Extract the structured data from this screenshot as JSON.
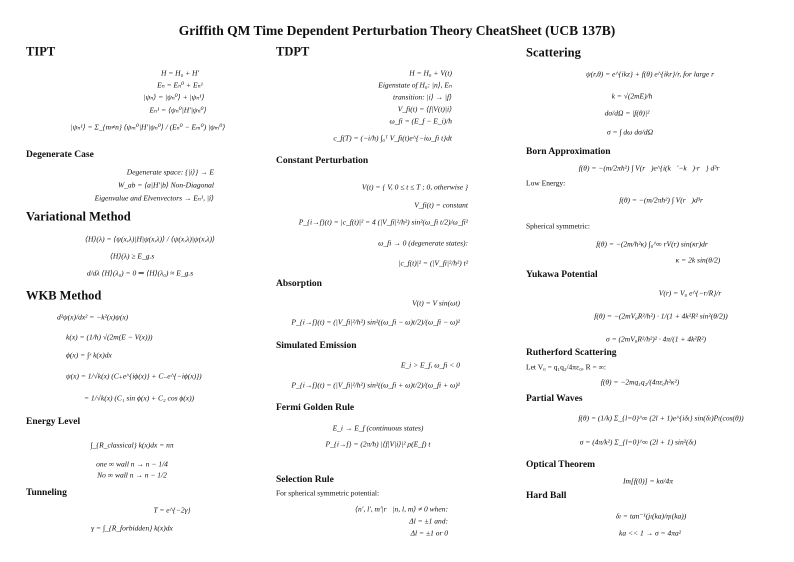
{
  "title": "Griffith QM Time Dependent Perturbation Theory CheatSheet (UCB 137B)",
  "col1": {
    "tipt": {
      "header": "TIPT",
      "eq": [
        "H = H₀ + H′",
        "Eₙ = Eₙ⁰ + Eₙ¹",
        "|ψₙ⟩ = |ψₙ⁰⟩ + |ψₙ¹⟩",
        "Eₙ¹ = ⟨ψₙ⁰|H′|ψₙ⁰⟩",
        "|ψₙ¹⟩ = Σ_{m≠n} ⟨ψₘ⁰|H′|ψₙ⁰⟩ / (Eₙ⁰ − Eₘ⁰) |ψₘ⁰⟩"
      ]
    },
    "degenerate": {
      "header": "Degenerate Case",
      "eq": [
        "Degenerate space: {|i⟩} → E",
        "W_ab = ⟨a|H′|b⟩ Non-Diagonal",
        "Eigenvalue and Elvenvectors → Eₙ¹, |î⟩"
      ]
    },
    "variational": {
      "header": "Variational Method",
      "eq": [
        "⟨H⟩(λ) = ⟨ψ(x,λ)|H|ψ(x,λ)⟩ / ⟨ψ(x,λ)|ψ(x,λ)⟩",
        "⟨H⟩(λ) ≥ E_g.s",
        "d/dλ ⟨H⟩(λ₀) = 0 ⇒ ⟨H⟩(λ₀) ≈ E_g.s"
      ]
    },
    "wkb": {
      "header": "WKB Method",
      "eq": [
        "d²ψ(x)/dx² = −k²(x)ψ(x)",
        "k(x) = (1/ħ) √(2m(E − V(x)))",
        "ϕ(x) = ∫ˣ k(x)dx",
        "ψ(x) = 1/√k(x) (C₊e^{iϕ(x)} + C₋e^{−iϕ(x)})",
        "= 1/√k(x) (C₁ sin ϕ(x) + C₂ cos ϕ(x))"
      ]
    },
    "energy": {
      "header": "Energy Level",
      "eq": [
        "∫_{R_classical} k(x)dx = nπ",
        "one ∞ wall   n → n − 1/4",
        "No ∞ wall   n → n − 1/2"
      ]
    },
    "tunneling": {
      "header": "Tunneling",
      "eq": [
        "T = e^{−2γ}",
        "γ = ∫_{R_forbidden} k(x)dx"
      ]
    }
  },
  "col2": {
    "tdpt": {
      "header": "TDPT",
      "eq": [
        "H = H₀ + V(t)",
        "Eigenstate of H₀: |n⟩, Eₙ",
        "transition: |i⟩ → |f⟩",
        "V_fi(t) = ⟨f|V(t)|i⟩",
        "ω_fi = (E_f − E_i)/ħ",
        "c_f(T) = (−i/ħ) ∫₀ᵀ V_fi(t)e^{−iω_fi t}dt"
      ]
    },
    "constant": {
      "header": "Constant Perturbation",
      "eq": [
        "V(t) = { V,  0 ≤ t ≤ T ;  0,  otherwise }",
        "V_fi(t) = constant",
        "P_{i→f}(t) = |c_f(t)|² = 4 (|V_fi|²/ħ²) sin²(ω_fi t/2)/ω_fi²",
        "ω_fi → 0   (degenerate states):",
        "|c_f(t)|² = (|V_fi|²/ħ²) t²"
      ]
    },
    "absorption": {
      "header": "Absorption",
      "eq": [
        "V(t) = V sin(ωt)",
        "P_{i→f}(t) = (|V_fi|²/ħ²) sin²((ω_fi − ω)t/2)/(ω_fi − ω)²"
      ]
    },
    "emission": {
      "header": "Simulated Emission",
      "eq": [
        "E_i > E_f,   ω_fi < 0",
        "P_{i→f}(t) = (|V_fi|²/ħ²) sin²((ω_fi + ω)t/2)/(ω_fi + ω)²"
      ]
    },
    "fermi": {
      "header": "Fermi Golden Rule",
      "eq": [
        "E_i → E_f  (continuous states)",
        "P_{i→f} = (2π/ħ) |⟨f|V|i⟩|² ρ(E_f) t"
      ]
    },
    "selection": {
      "header": "Selection Rule",
      "note": "For spherical symmetric potential:",
      "eq": [
        "⟨n′, l′, m′|r⃗|n, l, m⟩ ≠ 0 when:",
        "Δl = ±1 and:",
        "Δl = ±1 or 0"
      ]
    }
  },
  "col3": {
    "scattering": {
      "header": "Scattering",
      "eq": [
        "ψ(r,θ) = e^{ikz} + f(θ) e^{ikr}/r,  for large r",
        "k = √(2mE)/ħ",
        "dσ/dΩ = |f(θ)|²",
        "σ = ∫ dω dσ/dΩ"
      ]
    },
    "born": {
      "header": "Born Approximation",
      "eq": [
        "f(θ) = −(m/2πħ²) ∫ V(r⃗)e^{i(k⃗′−k⃗)·r⃗} d³r⃗"
      ],
      "low_label": "Low Energy:",
      "low_eq": "f(θ) = −(m/2πħ²) ∫ V(r⃗)d³r⃗",
      "sph_label": "Spherical symmetric:",
      "sph_eq": [
        "f(θ) = −(2m/ħ²κ) ∫₀^∞ rV(r) sin(κr)dr",
        "κ = 2k sin(θ/2)"
      ]
    },
    "yukawa": {
      "header": "Yukawa Potential",
      "eq": [
        "V(r) = V₀ e^{−r/R}/r",
        "f(θ) = −(2mV₀R²/ħ²) · 1/(1 + 4k²R² sin²(θ/2))",
        "σ = (2mV₀R²/ħ²)² · 4π/(1 + 4k²R²)"
      ]
    },
    "rutherford": {
      "header": "Rutherford Scattering",
      "note": "Let V₀ = q₁q₂/4πε₀, R = ∞:",
      "eq": [
        "f(θ) = −2mq₁q₂/(4πε₀ħ²κ²)"
      ]
    },
    "partial": {
      "header": "Partial Waves",
      "eq": [
        "f(θ) = (1/k) Σ_{l=0}^∞ (2l + 1)e^{iδₗ} sin(δₗ)Pₗ(cos(θ))",
        "σ = (4π/k²) Σ_{l=0}^∞ (2l + 1) sin²(δₗ)"
      ]
    },
    "optical": {
      "header": "Optical Theorem",
      "eq": [
        "Im[f(0)] = kσ/4π"
      ]
    },
    "hardball": {
      "header": "Hard Ball",
      "eq": [
        "δₗ = tan⁻¹(jₗ(ka)/ηₗ(ka))",
        "ka << 1 → σ = 4πa²"
      ]
    }
  }
}
